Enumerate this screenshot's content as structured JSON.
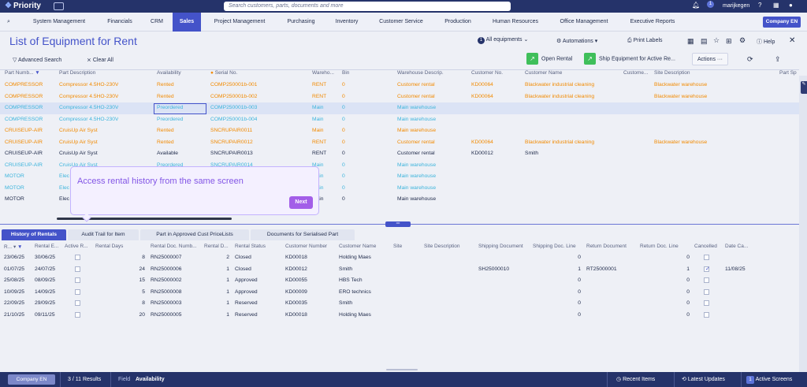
{
  "topbar": {
    "logo": "Priority",
    "search_placeholder": "Search customers, parts, documents and more",
    "notif_count": "1",
    "user": "marijkegen"
  },
  "menu": [
    "System Management",
    "Financials",
    "CRM",
    "Sales",
    "Project Management",
    "Purchasing",
    "Inventory",
    "Customer Service",
    "Production",
    "Human Resources",
    "Office Management",
    "Executive Reports"
  ],
  "company": "Company EN",
  "page_title": "List of Equipment for Rent",
  "toolbar": {
    "filter_count": "1",
    "all_equipments": "All equipments",
    "automations": "Automations",
    "print_labels": "Print Labels",
    "help": "Help",
    "advanced_search": "Advanced Search",
    "clear_all": "Clear All",
    "open_rental": "Open Rental",
    "ship_equipment": "Ship Equipment for Active Re...",
    "actions": "Actions"
  },
  "columns": [
    "Part Numb...",
    "Part Description",
    "Availability",
    "Serial No.",
    "Wareho...",
    "Bin",
    "Warehouse Descrip.",
    "Customer No.",
    "Customer Name",
    "Custome...",
    "Site Description",
    "Part Sp"
  ],
  "rows": [
    {
      "c": "orange",
      "v": [
        "COMPRESSOR",
        "Compressor 4.5HO-230V",
        "Rented",
        "COMP250001b-001",
        "RENT",
        "0",
        "Customer rental",
        "KD00064",
        "Blackwater industrial cleaning",
        "",
        "Blackwater warehouse"
      ]
    },
    {
      "c": "orange",
      "v": [
        "COMPRESSOR",
        "Compressor 4.5HO-230V",
        "Rented",
        "COMP250001b-002",
        "RENT",
        "0",
        "Customer rental",
        "KD00064",
        "Blackwater industrial cleaning",
        "",
        "Blackwater warehouse"
      ]
    },
    {
      "c": "blue",
      "v": [
        "COMPRESSOR",
        "Compressor 4.5HO-230V",
        "Preordered",
        "COMP250001b-003",
        "Main",
        "0",
        "Main warehouse",
        "",
        "",
        "",
        ""
      ]
    },
    {
      "c": "blue",
      "v": [
        "COMPRESSOR",
        "Compressor 4.5HO-230V",
        "Preordered",
        "COMP250001b-004",
        "Main",
        "0",
        "Main warehouse",
        "",
        "",
        "",
        ""
      ]
    },
    {
      "c": "orange",
      "v": [
        "CRUISEUP-AIR",
        "CruisUp Air Syst",
        "Rented",
        "SNCRUPAIR0011",
        "Main",
        "0",
        "Main warehouse",
        "",
        "",
        "",
        ""
      ]
    },
    {
      "c": "orange",
      "v": [
        "CRUISEUP-AIR",
        "CruisUp Air Syst",
        "Rented",
        "SNCRUPAIR0012",
        "RENT",
        "0",
        "Customer rental",
        "KD00064",
        "Blackwater industrial cleaning",
        "",
        "Blackwater warehouse"
      ]
    },
    {
      "c": "black",
      "v": [
        "CRUISEUP-AIR",
        "CruisUp Air Syst",
        "Available",
        "SNCRUPAIR0013",
        "RENT",
        "0",
        "Customer rental",
        "KD00012",
        "Smith",
        "",
        ""
      ]
    },
    {
      "c": "blue",
      "v": [
        "CRUISEUP-AIR",
        "CruisUp Air Syst",
        "Preordered",
        "SNCRUPAIR0014",
        "Main",
        "0",
        "Main warehouse",
        "",
        "",
        "",
        ""
      ]
    },
    {
      "c": "blue",
      "v": [
        "MOTOR",
        "Elec",
        "",
        "",
        "Main",
        "0",
        "Main warehouse",
        "",
        "",
        "",
        ""
      ]
    },
    {
      "c": "blue",
      "v": [
        "MOTOR",
        "Elec",
        "",
        "",
        "Main",
        "0",
        "Main warehouse",
        "",
        "",
        "",
        ""
      ]
    },
    {
      "c": "black",
      "v": [
        "MOTOR",
        "Elec",
        "",
        "",
        "Main",
        "0",
        "Main warehouse",
        "",
        "",
        "",
        ""
      ]
    }
  ],
  "popup": {
    "text": "Access rental history from the same screen",
    "next": "Next"
  },
  "tabs": [
    "History of Rentals",
    "Audit Trail for Item",
    "Part in Approved Cust PriceLists",
    "Documents for Serialised Part"
  ],
  "lower_columns": [
    "R...",
    "Rental E...",
    "Active R...",
    "Rental Days",
    "Rental Doc. Numb...",
    "Rental D...",
    "Rental Status",
    "Customer Number",
    "Customer Name",
    "Site",
    "Site Description",
    "Shipping Document",
    "Shipping Doc. Line",
    "Return Document",
    "Return Doc. Line",
    "Cancelled",
    "Date Ca..."
  ],
  "lower_rows": [
    {
      "v": [
        "23/06/25",
        "30/06/25",
        "",
        "8",
        "RN25000007",
        "2",
        "Closed",
        "KD00018",
        "Holding Maes",
        "",
        "",
        "",
        "0",
        "",
        "0"
      ],
      "cancelled": false,
      "date": ""
    },
    {
      "v": [
        "01/07/25",
        "24/07/25",
        "",
        "24",
        "RN25000006",
        "1",
        "Closed",
        "KD00012",
        "Smith",
        "",
        "",
        "SH25000010",
        "1",
        "RT25000001",
        "1"
      ],
      "cancelled": true,
      "date": "11/08/25"
    },
    {
      "v": [
        "25/08/25",
        "08/09/25",
        "",
        "15",
        "RN25000002",
        "1",
        "Approved",
        "KD00055",
        "HBS Tech",
        "",
        "",
        "",
        "0",
        "",
        "0"
      ],
      "cancelled": false,
      "date": ""
    },
    {
      "v": [
        "10/09/25",
        "14/09/25",
        "",
        "5",
        "RN25000008",
        "1",
        "Approved",
        "KD00009",
        "ERO technics",
        "",
        "",
        "",
        "0",
        "",
        "0"
      ],
      "cancelled": false,
      "date": ""
    },
    {
      "v": [
        "22/09/25",
        "29/09/25",
        "",
        "8",
        "RN25000003",
        "1",
        "Reserved",
        "KD00035",
        "Smith",
        "",
        "",
        "",
        "0",
        "",
        "0"
      ],
      "cancelled": false,
      "date": ""
    },
    {
      "v": [
        "21/10/25",
        "09/11/25",
        "",
        "20",
        "RN25000005",
        "1",
        "Reserved",
        "KD00018",
        "Holding Maes",
        "",
        "",
        "",
        "0",
        "",
        "0"
      ],
      "cancelled": false,
      "date": ""
    }
  ],
  "statusbar": {
    "company": "Company EN",
    "results": "3 / 11 Results",
    "field_label": "Field",
    "field_value": "Availability",
    "recent": "Recent Items",
    "latest": "Latest Updates",
    "active": "Active Screens",
    "active_count": "1"
  },
  "colors": {
    "accent": "#4453c9",
    "rented": "#f28a00",
    "preordered": "#3cb4dc",
    "topbar": "#25336a"
  }
}
